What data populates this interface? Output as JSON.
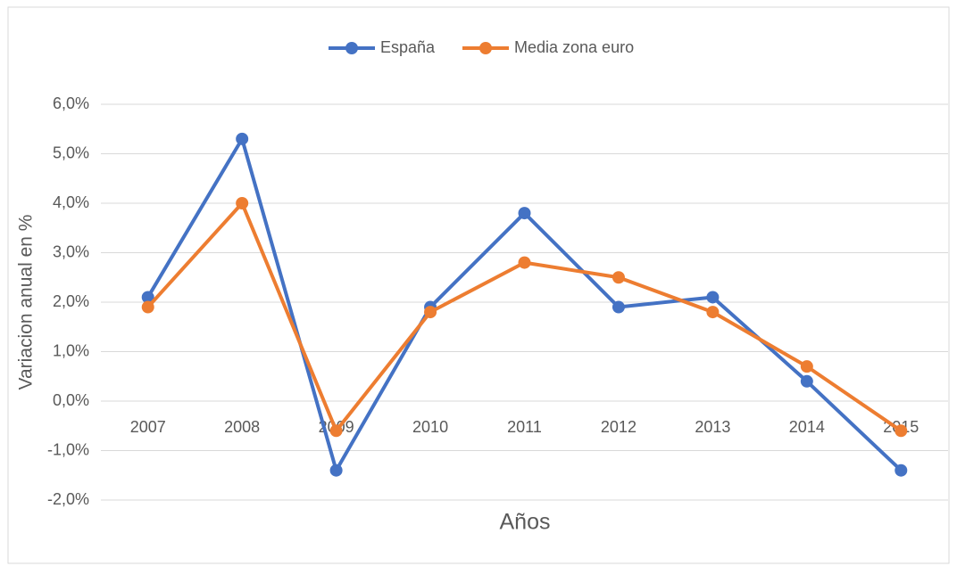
{
  "chart_data": {
    "type": "line",
    "x_label": "Años",
    "y_label": "Variacion anual en %",
    "categories": [
      "2007",
      "2008",
      "2009",
      "2010",
      "2011",
      "2012",
      "2013",
      "2014",
      "2015"
    ],
    "series": [
      {
        "name": "España",
        "color": "#4472c4",
        "values": [
          2.1,
          5.3,
          -1.4,
          1.9,
          3.8,
          1.9,
          2.1,
          0.4,
          -1.4
        ]
      },
      {
        "name": "Media zona euro",
        "color": "#ed7d31",
        "values": [
          1.9,
          4.0,
          -0.6,
          1.8,
          2.8,
          2.5,
          1.8,
          0.7,
          -0.6
        ]
      }
    ],
    "ylim": [
      -2,
      6
    ],
    "yticks": [
      {
        "value": -2,
        "label": "-2,0%"
      },
      {
        "value": -1,
        "label": "-1,0%"
      },
      {
        "value": 0,
        "label": "0,0%"
      },
      {
        "value": 1,
        "label": "1,0%"
      },
      {
        "value": 2,
        "label": "2,0%"
      },
      {
        "value": 3,
        "label": "3,0%"
      },
      {
        "value": 4,
        "label": "4,0%"
      },
      {
        "value": 5,
        "label": "5,0%"
      },
      {
        "value": 6,
        "label": "6,0%"
      }
    ],
    "grid": true,
    "legend": "top"
  }
}
